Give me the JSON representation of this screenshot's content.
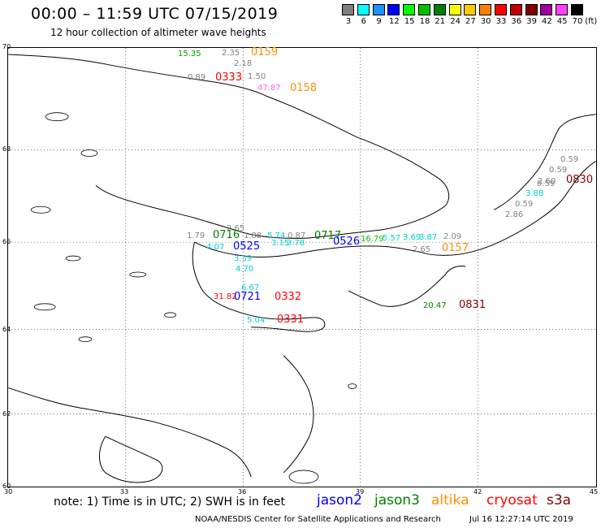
{
  "title": "00:00 – 11:59 UTC 07/15/2019",
  "subtitle": "12 hour collection of altimeter wave heights",
  "colorbar": {
    "unit": "(ft)",
    "bins": [
      {
        "label": "3",
        "color": "#7f7f7f"
      },
      {
        "label": "6",
        "color": "#00ffff"
      },
      {
        "label": "9",
        "color": "#1e90ff"
      },
      {
        "label": "12",
        "color": "#0000ff"
      },
      {
        "label": "15",
        "color": "#00ff00"
      },
      {
        "label": "18",
        "color": "#00c000"
      },
      {
        "label": "21",
        "color": "#008000"
      },
      {
        "label": "24",
        "color": "#ffff00"
      },
      {
        "label": "27",
        "color": "#ffc800"
      },
      {
        "label": "30",
        "color": "#ff8000"
      },
      {
        "label": "33",
        "color": "#ff0000"
      },
      {
        "label": "36",
        "color": "#c00000"
      },
      {
        "label": "39",
        "color": "#800000"
      },
      {
        "label": "42",
        "color": "#a000a0"
      },
      {
        "label": "45",
        "color": "#ff40ff"
      },
      {
        "label": "70",
        "color": "#000000"
      }
    ]
  },
  "axes": {
    "lat_ticks": [
      "70",
      "68",
      "66",
      "64",
      "62",
      "60"
    ],
    "lon_ticks": [
      "30",
      "33",
      "36",
      "39",
      "42",
      "45"
    ]
  },
  "map": {
    "region": "White Sea / Kola Peninsula / Karelia",
    "land_color": "#ffffff",
    "coast_color": "#000000",
    "grid_style": "dotted"
  },
  "wave_values": [
    {
      "text": "15.35",
      "color": "#00a000"
    },
    {
      "text": "2.35",
      "color": "#808080"
    },
    {
      "text": "2.18",
      "color": "#808080"
    },
    {
      "text": "0.89",
      "color": "#808080"
    },
    {
      "text": "1.50",
      "color": "#808080"
    },
    {
      "text": "47.87",
      "color": "#ff60ff"
    },
    {
      "text": "0.59",
      "color": "#808080"
    },
    {
      "text": "0.59",
      "color": "#808080"
    },
    {
      "text": "2.60",
      "color": "#808080"
    },
    {
      "text": "0.59",
      "color": "#808080"
    },
    {
      "text": "3.88",
      "color": "#00d0d0"
    },
    {
      "text": "0.59",
      "color": "#808080"
    },
    {
      "text": "2.86",
      "color": "#808080"
    },
    {
      "text": "1.79",
      "color": "#808080"
    },
    {
      "text": "2.65",
      "color": "#808080"
    },
    {
      "text": "1.88",
      "color": "#808080"
    },
    {
      "text": "5.74",
      "color": "#00d0d0"
    },
    {
      "text": "0.87",
      "color": "#808080"
    },
    {
      "text": "16.79",
      "color": "#00c000"
    },
    {
      "text": "5.57",
      "color": "#00d0d0"
    },
    {
      "text": "3.69",
      "color": "#00d0d0"
    },
    {
      "text": "3.87",
      "color": "#00d0d0"
    },
    {
      "text": "2.09",
      "color": "#808080"
    },
    {
      "text": "4.07",
      "color": "#00d0d0"
    },
    {
      "text": "3.15",
      "color": "#00d0d0"
    },
    {
      "text": "3.78",
      "color": "#00d0d0"
    },
    {
      "text": "2.65",
      "color": "#808080"
    },
    {
      "text": "3.39",
      "color": "#00d0d0"
    },
    {
      "text": "4.70",
      "color": "#00d0d0"
    },
    {
      "text": "6.67",
      "color": "#00d0d0"
    },
    {
      "text": "31.82",
      "color": "#ff0000"
    },
    {
      "text": "5.04",
      "color": "#00d0d0"
    },
    {
      "text": "20.47",
      "color": "#008000"
    }
  ],
  "pass_labels": [
    {
      "text": "0159",
      "color": "#ff9000"
    },
    {
      "text": "0333",
      "color": "#ff0000"
    },
    {
      "text": "0158",
      "color": "#ff9000"
    },
    {
      "text": "0830",
      "color": "#800000"
    },
    {
      "text": "0716",
      "color": "#008000"
    },
    {
      "text": "0717",
      "color": "#008000"
    },
    {
      "text": "0526",
      "color": "#0000ff"
    },
    {
      "text": "0525",
      "color": "#0000ff"
    },
    {
      "text": "0157",
      "color": "#ff9000"
    },
    {
      "text": "0721",
      "color": "#0000ff"
    },
    {
      "text": "0332",
      "color": "#ff0000"
    },
    {
      "text": "0331",
      "color": "#ff0000"
    },
    {
      "text": "0831",
      "color": "#800000"
    }
  ],
  "footer": {
    "note": "note: 1) Time is in UTC; 2) SWH is in feet",
    "satellites": [
      {
        "name": "jason2",
        "color": "#0000ff"
      },
      {
        "name": "jason3",
        "color": "#008000"
      },
      {
        "name": "altika",
        "color": "#ff9000"
      },
      {
        "name": "cryosat",
        "color": "#ff0000"
      },
      {
        "name": "s3a",
        "color": "#800000"
      }
    ],
    "credit": "NOAA/NESDIS Center for Satellite Applications and Research",
    "timestamp": "Jul 16 12:27:14 UTC 2019"
  }
}
